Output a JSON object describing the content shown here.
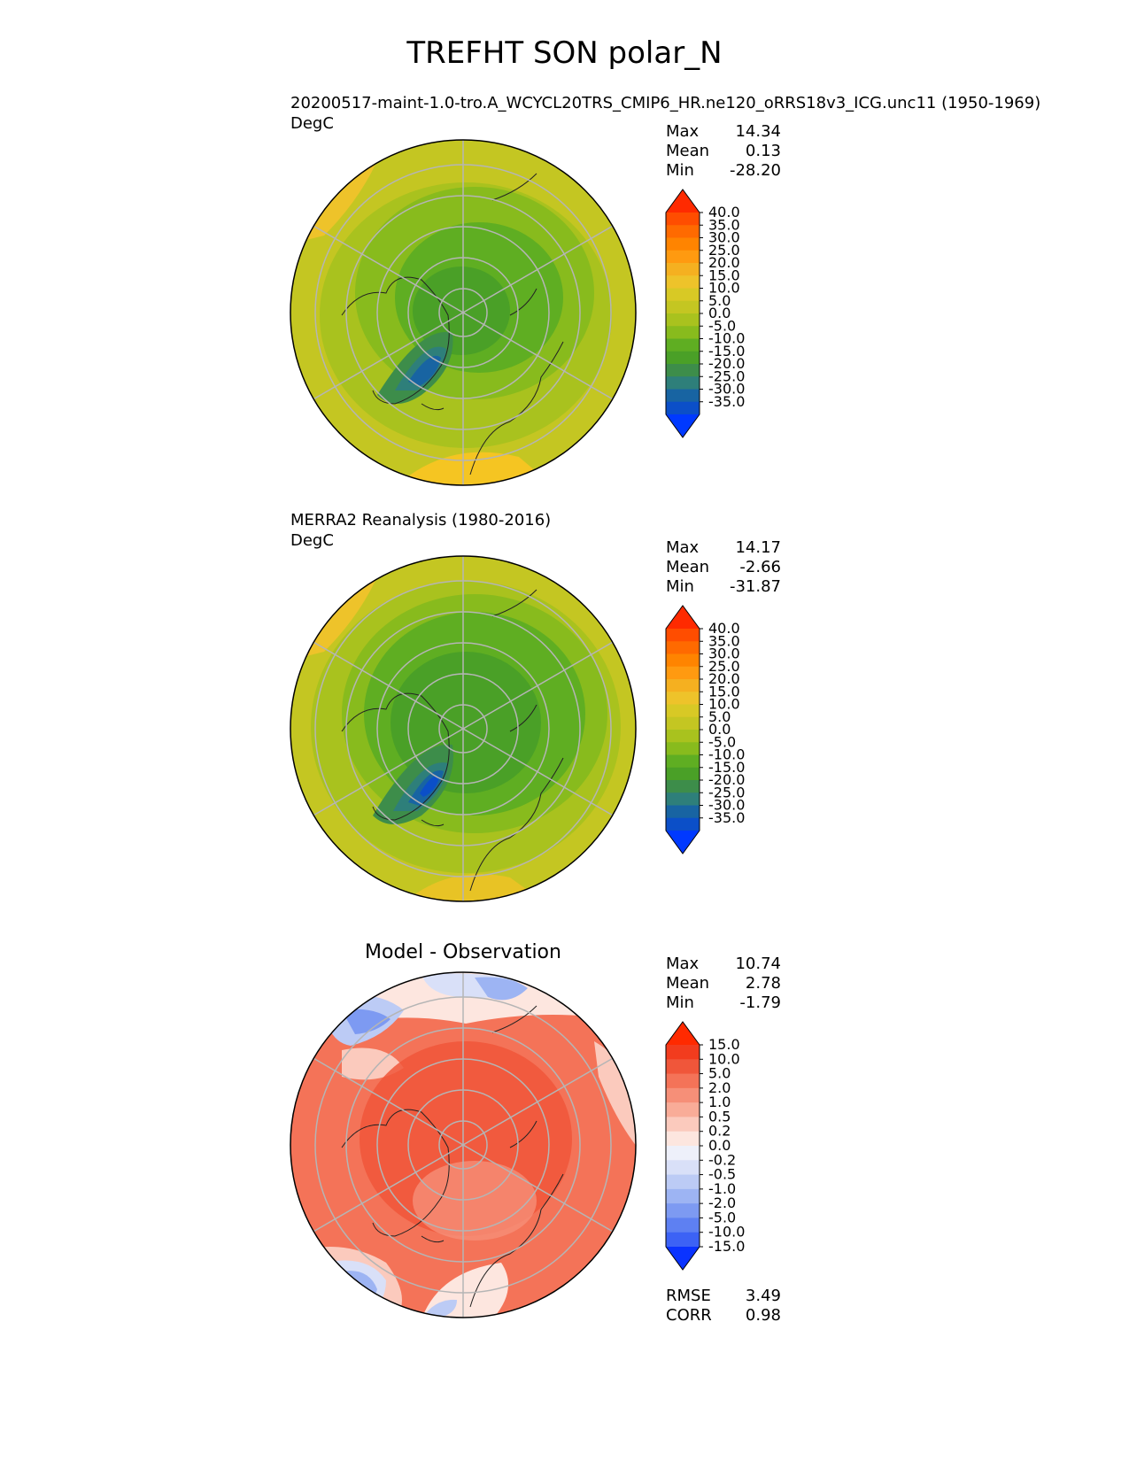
{
  "figure": {
    "title": "TREFHT SON polar_N"
  },
  "chart_data": [
    {
      "type": "polar-map",
      "id": "model",
      "title": "20200517-maint-1.0-tro.A_WCYCL20TRS_CMIP6_HR.ne120_oRRS18v3_ICG.unc11 (1950-1969)",
      "units": "DegC",
      "stats": {
        "max_label": "Max",
        "max": "14.34",
        "mean_label": "Mean",
        "mean": "0.13",
        "min_label": "Min",
        "min": "-28.20"
      },
      "colorbar": {
        "levels": [
          "40.0",
          "35.0",
          "30.0",
          "25.0",
          "20.0",
          "15.0",
          "10.0",
          "5.0",
          "0.0",
          "-5.0",
          "-10.0",
          "-15.0",
          "-20.0",
          "-25.0",
          "-30.0",
          "-35.0"
        ],
        "colors": [
          "#ff2a00",
          "#ff4d00",
          "#ff6a00",
          "#ff8400",
          "#ff9a10",
          "#f5b020",
          "#eec32a",
          "#d8c925",
          "#c4c622",
          "#a9c21e",
          "#88bb1d",
          "#5fae22",
          "#4aa027",
          "#3d8d4a",
          "#2e7f7a",
          "#1864a2",
          "#0b4fc8",
          "#0039ff"
        ]
      }
    },
    {
      "type": "polar-map",
      "id": "obs",
      "title": "MERRA2 Reanalysis (1980-2016)",
      "units": "DegC",
      "stats": {
        "max_label": "Max",
        "max": "14.17",
        "mean_label": "Mean",
        "mean": "-2.66",
        "min_label": "Min",
        "min": "-31.87"
      },
      "colorbar": {
        "levels": [
          "40.0",
          "35.0",
          "30.0",
          "25.0",
          "20.0",
          "15.0",
          "10.0",
          "5.0",
          "0.0",
          "-5.0",
          "-10.0",
          "-15.0",
          "-20.0",
          "-25.0",
          "-30.0",
          "-35.0"
        ],
        "colors": [
          "#ff2a00",
          "#ff4d00",
          "#ff6a00",
          "#ff8400",
          "#ff9a10",
          "#f5b020",
          "#eec32a",
          "#d8c925",
          "#c4c622",
          "#a9c21e",
          "#88bb1d",
          "#5fae22",
          "#4aa027",
          "#3d8d4a",
          "#2e7f7a",
          "#1864a2",
          "#0b4fc8",
          "#0039ff"
        ]
      }
    },
    {
      "type": "polar-map",
      "id": "diff",
      "title": "Model - Observation",
      "units": "",
      "stats": {
        "max_label": "Max",
        "max": "10.74",
        "mean_label": "Mean",
        "mean": "2.78",
        "min_label": "Min",
        "min": "-1.79"
      },
      "metrics": {
        "rmse_label": "RMSE",
        "rmse": "3.49",
        "corr_label": "CORR",
        "corr": "0.98"
      },
      "colorbar": {
        "levels": [
          "15.0",
          "10.0",
          "5.0",
          "2.0",
          "1.0",
          "0.5",
          "0.2",
          "0.0",
          "-0.2",
          "-0.5",
          "-1.0",
          "-2.0",
          "-5.0",
          "-10.0",
          "-15.0"
        ],
        "colors": [
          "#ff2a00",
          "#f23c1e",
          "#f0563a",
          "#f47358",
          "#f68f78",
          "#f9ac98",
          "#fbcabd",
          "#fde6df",
          "#eef0fa",
          "#d9e0f8",
          "#bccbf5",
          "#9db4f3",
          "#7d9af2",
          "#5e80f2",
          "#3c62f5",
          "#0a33ff"
        ]
      }
    }
  ]
}
